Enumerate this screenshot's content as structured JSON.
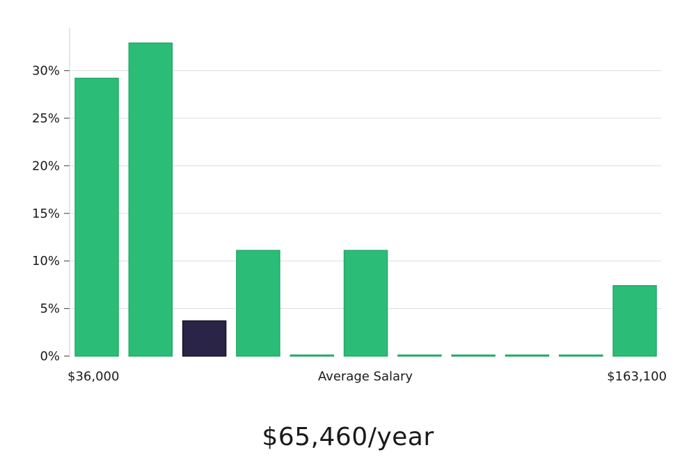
{
  "chart_data": {
    "type": "bar",
    "title": "",
    "xlabel": "Average Salary",
    "ylabel": "",
    "x_min_label": "$36,000",
    "x_max_label": "$163,100",
    "ylim": [
      0,
      0.345
    ],
    "y_ticks": [
      0,
      0.05,
      0.1,
      0.15,
      0.2,
      0.25,
      0.3
    ],
    "y_tick_labels": [
      "0%",
      "5%",
      "10%",
      "15%",
      "20%",
      "25%",
      "30%"
    ],
    "grid": true,
    "values": [
      0.292,
      0.329,
      0.037,
      0.111,
      0.0,
      0.111,
      0.0,
      0.0,
      0.0,
      0.0,
      0.074
    ],
    "highlight_index": 2,
    "colors": {
      "bar": "#2bbd77",
      "bar_edge": "#22a866",
      "highlight": "#2a2546",
      "highlight_edge": "#15122a",
      "grid": "#dddddd",
      "axis": "#cccccc"
    }
  },
  "summary": {
    "salary_text": "$65,460/year"
  }
}
